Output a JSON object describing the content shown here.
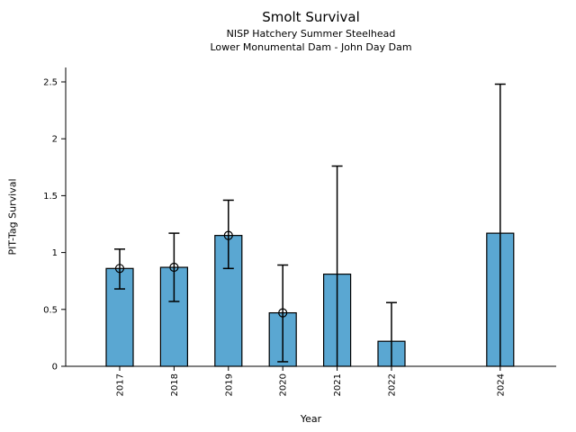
{
  "figure": {
    "title": "Smolt Survival",
    "subtitle1": "NISP Hatchery Summer Steelhead",
    "subtitle2": "Lower Monumental Dam - John Day Dam"
  },
  "chart_data": {
    "type": "bar",
    "title": "Smolt Survival",
    "subtitle": [
      "NISP Hatchery Summer Steelhead",
      "Lower Monumental Dam - John Day Dam"
    ],
    "xlabel": "Year",
    "ylabel": "PIT-Tag Survival",
    "categories": [
      "2017",
      "2018",
      "2019",
      "2020",
      "2021",
      "2022",
      "2024"
    ],
    "x_numeric": [
      2017,
      2018,
      2019,
      2020,
      2021,
      2022,
      2024
    ],
    "series": [
      {
        "name": "PIT-Tag Survival",
        "values": [
          0.86,
          0.87,
          1.15,
          0.47,
          0.81,
          0.22,
          1.17
        ],
        "error_low": [
          0.68,
          0.57,
          0.86,
          0.04,
          0.0,
          0.0,
          0.0
        ],
        "error_high": [
          1.03,
          1.17,
          1.46,
          0.89,
          1.76,
          0.56,
          2.48
        ],
        "point_marker": [
          true,
          true,
          true,
          true,
          false,
          false,
          false
        ]
      }
    ],
    "xlim": [
      2016,
      2025
    ],
    "ylim": [
      0,
      2.63
    ],
    "yticks": [
      0,
      0.5,
      1,
      1.5,
      2,
      2.5
    ],
    "bar_color": "#5AA7D2",
    "bar_edge_color": "#000000",
    "error_color": "#000000",
    "marker_style": "open-circle",
    "grid": false,
    "legend": null
  }
}
